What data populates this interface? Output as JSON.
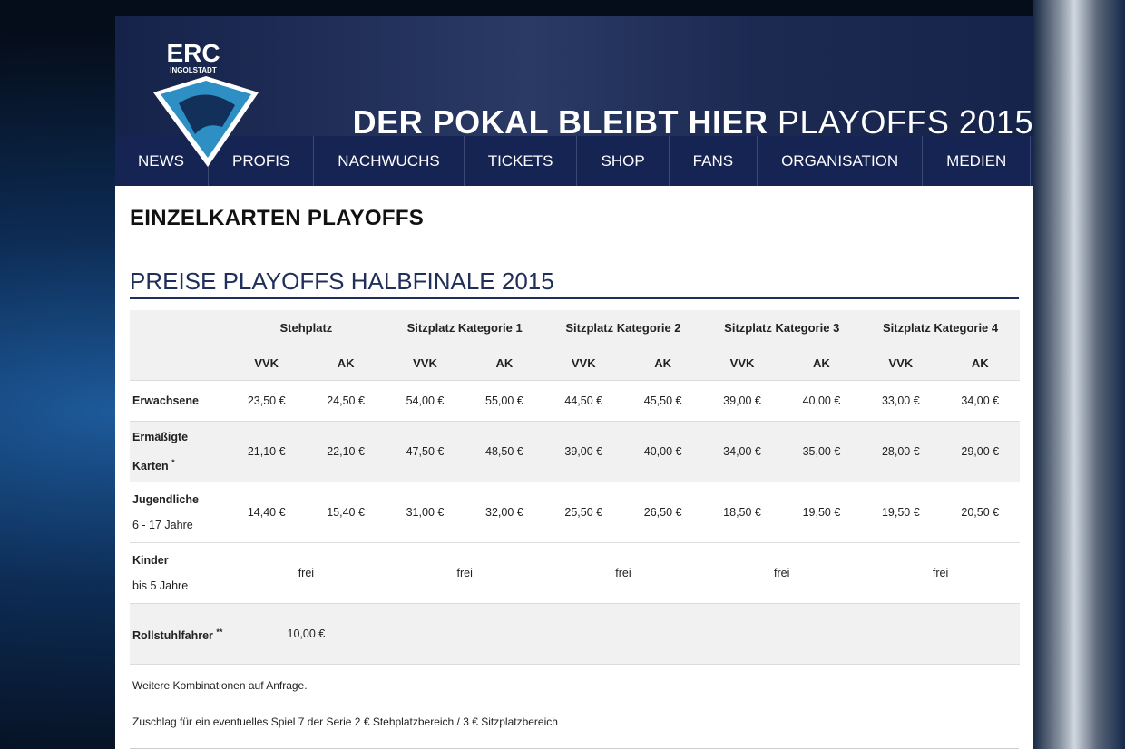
{
  "header": {
    "logo": {
      "title": "ERC",
      "subtitle": "INGOLSTADT"
    },
    "headline": {
      "bold": "DER POKAL BLEIBT HIER",
      "light": "PLAYOFFS 2015"
    }
  },
  "nav": [
    "NEWS",
    "PROFIS",
    "NACHWUCHS",
    "TICKETS",
    "SHOP",
    "FANS",
    "ORGANISATION",
    "MEDIEN"
  ],
  "page": {
    "title": "EINZELKARTEN PLAYOFFS",
    "section": "PREISE PLAYOFFS HALBFINALE 2015"
  },
  "table": {
    "groups": [
      "Stehplatz",
      "Sitzplatz Kategorie 1",
      "Sitzplatz Kategorie 2",
      "Sitzplatz Kategorie 3",
      "Sitzplatz Kategorie 4"
    ],
    "subheaders": [
      "VVK",
      "AK",
      "VVK",
      "AK",
      "VVK",
      "AK",
      "VVK",
      "AK",
      "VVK",
      "AK"
    ],
    "rows": [
      {
        "label": "Erwachsene",
        "cells": [
          "23,50 €",
          "24,50 €",
          "54,00 €",
          "55,00 €",
          "44,50 €",
          "45,50 €",
          "39,00 €",
          "40,00 €",
          "33,00 €",
          "34,00 €"
        ]
      },
      {
        "label": "Ermäßigte Karten",
        "note": "*",
        "cells": [
          "21,10 €",
          "22,10 €",
          "47,50 €",
          "48,50 €",
          "39,00 €",
          "40,00 €",
          "34,00 €",
          "35,00 €",
          "28,00 €",
          "29,00 €"
        ]
      },
      {
        "label": "Jugendliche",
        "sublabel": "6 - 17 Jahre",
        "cells": [
          "14,40 €",
          "15,40 €",
          "31,00 €",
          "32,00 €",
          "25,50 €",
          "26,50 €",
          "18,50 €",
          "19,50 €",
          "19,50 €",
          "20,50 €"
        ]
      },
      {
        "label": "Kinder",
        "sublabel": "bis 5 Jahre",
        "cells": [
          "frei",
          "frei",
          "frei",
          "frei",
          "frei"
        ]
      },
      {
        "label": "Rollstuhlfahrer",
        "note": "**",
        "cells": [
          "10,00 €"
        ]
      }
    ]
  },
  "notes": [
    "Weitere Kombinationen auf Anfrage.",
    "Zuschlag für ein eventuelles Spiel 7 der Serie 2 € Stehplatzbereich / 3 € Sitzplatzbereich"
  ]
}
